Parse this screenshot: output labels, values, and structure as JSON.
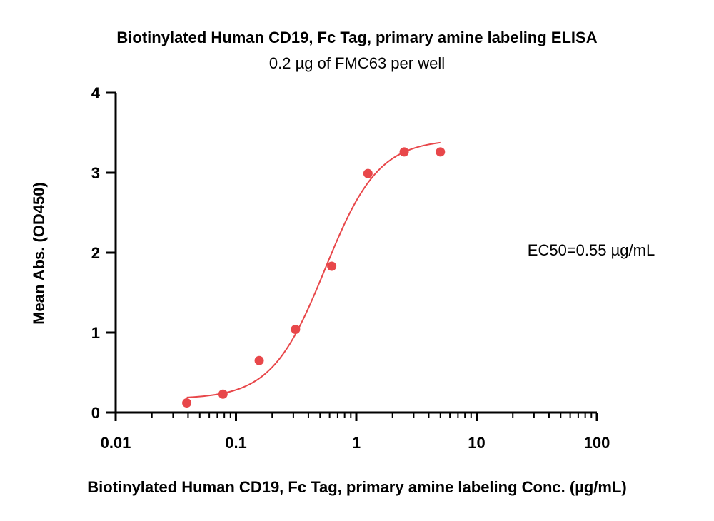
{
  "chart_data": {
    "type": "scatter",
    "title": "Biotinylated Human CD19, Fc Tag, primary amine labeling ELISA",
    "subtitle": "0.2 µg of FMC63 per well",
    "xlabel": "Biotinylated Human CD19, Fc Tag, primary amine labeling Conc. (µg/mL)",
    "ylabel": "Mean Abs. (OD450)",
    "x_scale": "log",
    "xlim": [
      0.01,
      100
    ],
    "ylim": [
      0,
      4
    ],
    "x_ticks": [
      "0.01",
      "0.1",
      "1",
      "10",
      "100"
    ],
    "y_ticks": [
      "0",
      "1",
      "2",
      "3",
      "4"
    ],
    "grid": false,
    "legend": "none",
    "annotation": "EC50=0.55 µg/mL",
    "color": "#e8474a",
    "series": [
      {
        "x": [
          0.039,
          0.078,
          0.156,
          0.3125,
          0.625,
          1.25,
          2.5,
          5
        ],
        "values": [
          0.12,
          0.23,
          0.65,
          1.04,
          1.83,
          2.99,
          3.26,
          3.26
        ]
      }
    ],
    "fit": {
      "bottom": 0.17,
      "top": 3.42,
      "ec50": 0.55,
      "hill": 1.95,
      "x_range": [
        0.039,
        5
      ]
    }
  }
}
